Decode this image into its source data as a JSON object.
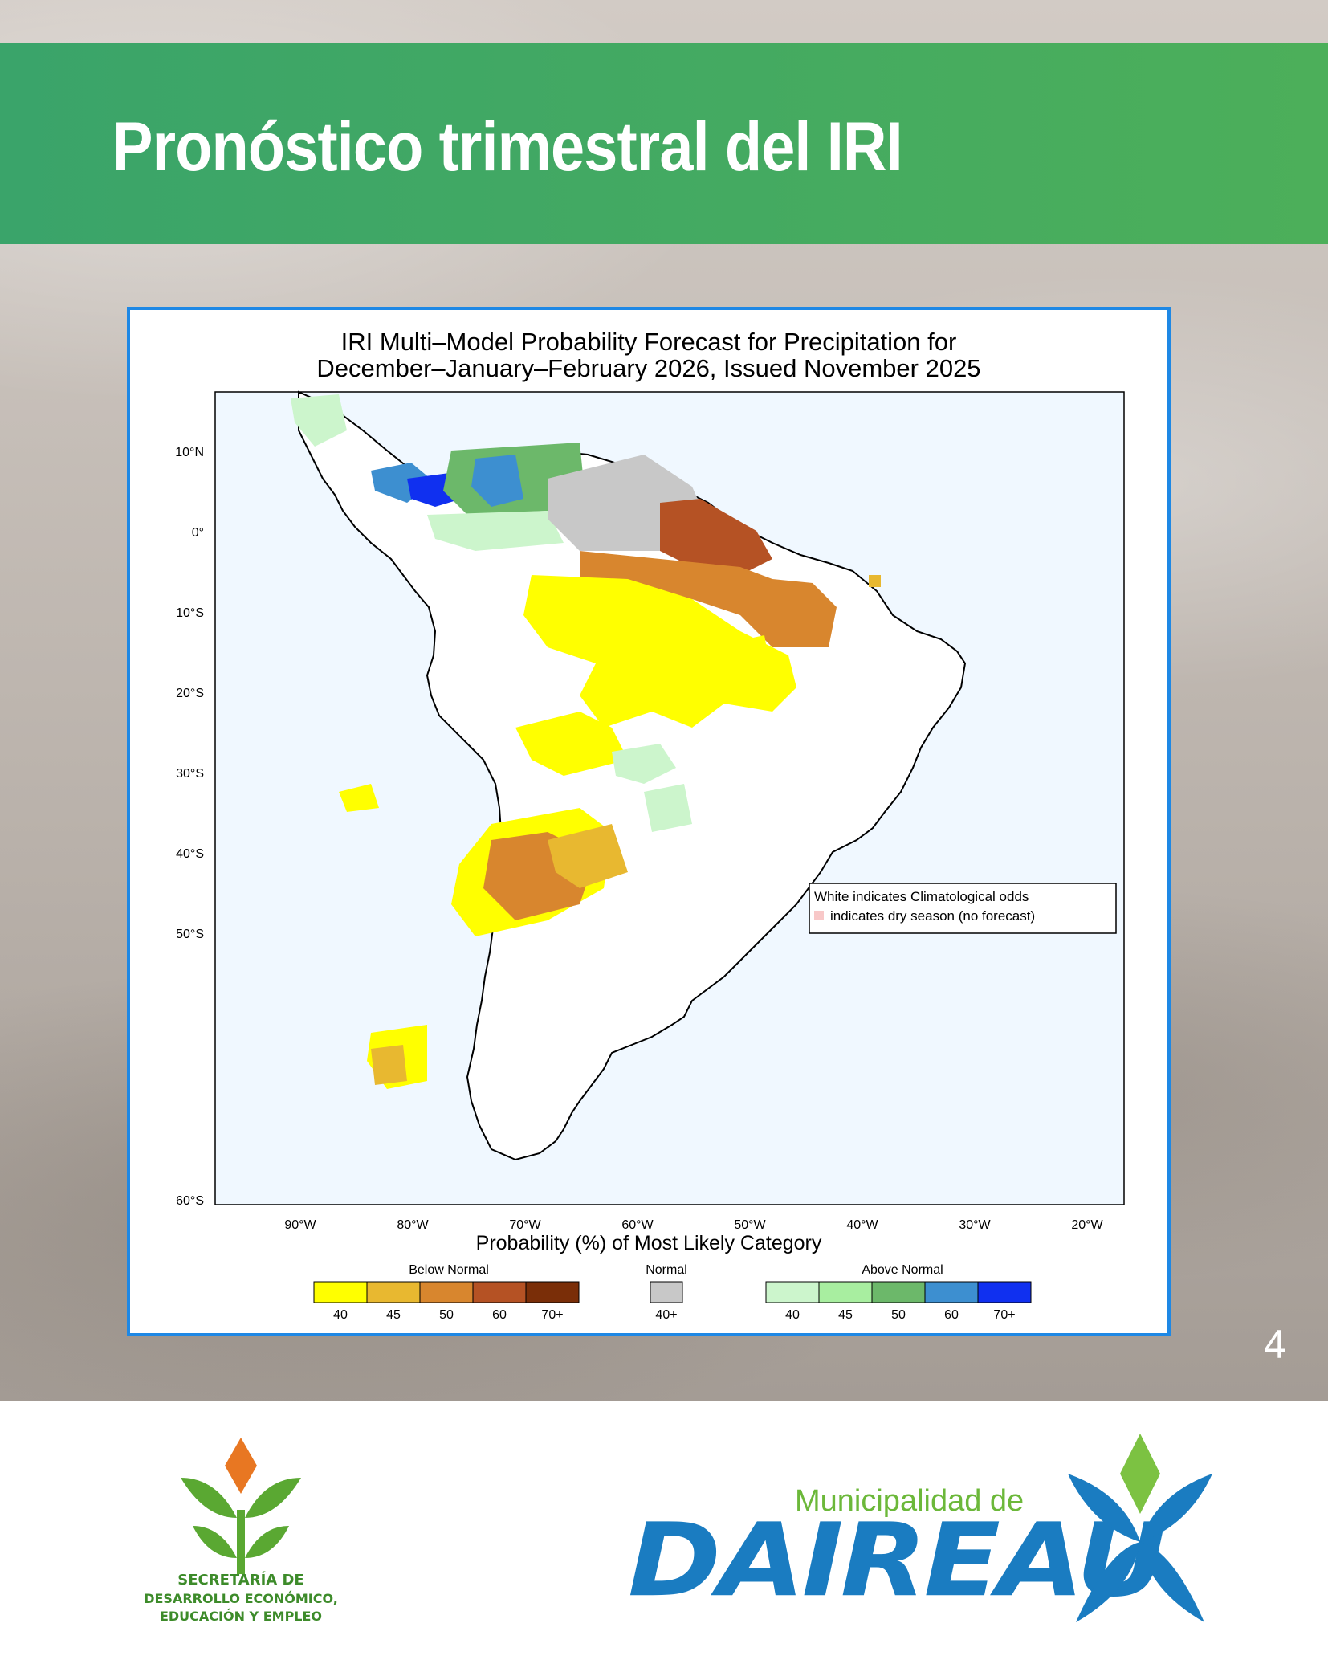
{
  "header": {
    "title": "Pronóstico trimestral del IRI"
  },
  "map": {
    "title_line1": "IRI Multi–Model Probability Forecast for Precipitation for",
    "title_line2": "December–January–February 2026, Issued November 2025",
    "lat_labels": [
      "10°N",
      "0°",
      "10°S",
      "20°S",
      "30°S",
      "40°S",
      "50°S",
      "60°S"
    ],
    "lon_labels": [
      "90°W",
      "80°W",
      "70°W",
      "60°W",
      "50°W",
      "40°W",
      "30°W",
      "20°W"
    ],
    "note_line1": "White indicates Climatological odds",
    "note_line2": "indicates dry season (no forecast)",
    "legend_title": "Probability (%) of Most Likely Category",
    "below_normal": {
      "label": "Below Normal",
      "ticks": [
        "40",
        "45",
        "50",
        "60",
        "70+"
      ],
      "colors": [
        "#ffff00",
        "#e8b830",
        "#d8862e",
        "#b55224",
        "#7a2e08"
      ]
    },
    "normal": {
      "label": "Normal",
      "ticks": [
        "40+"
      ],
      "colors": [
        "#c8c8c8"
      ]
    },
    "above_normal": {
      "label": "Above Normal",
      "ticks": [
        "40",
        "45",
        "50",
        "60",
        "70+"
      ],
      "colors": [
        "#ccf5cc",
        "#a8eea0",
        "#6cb86a",
        "#3d8fd0",
        "#1030f0"
      ]
    }
  },
  "page_number": "4",
  "footer": {
    "secretaria_line1": "SECRETARÍA DE",
    "secretaria_line2": "DESARROLLO ECONÓMICO,",
    "secretaria_line3": "EDUCACIÓN Y EMPLEO",
    "municipalidad_small": "Municipalidad de",
    "municipalidad_big": "DAIREAU"
  }
}
